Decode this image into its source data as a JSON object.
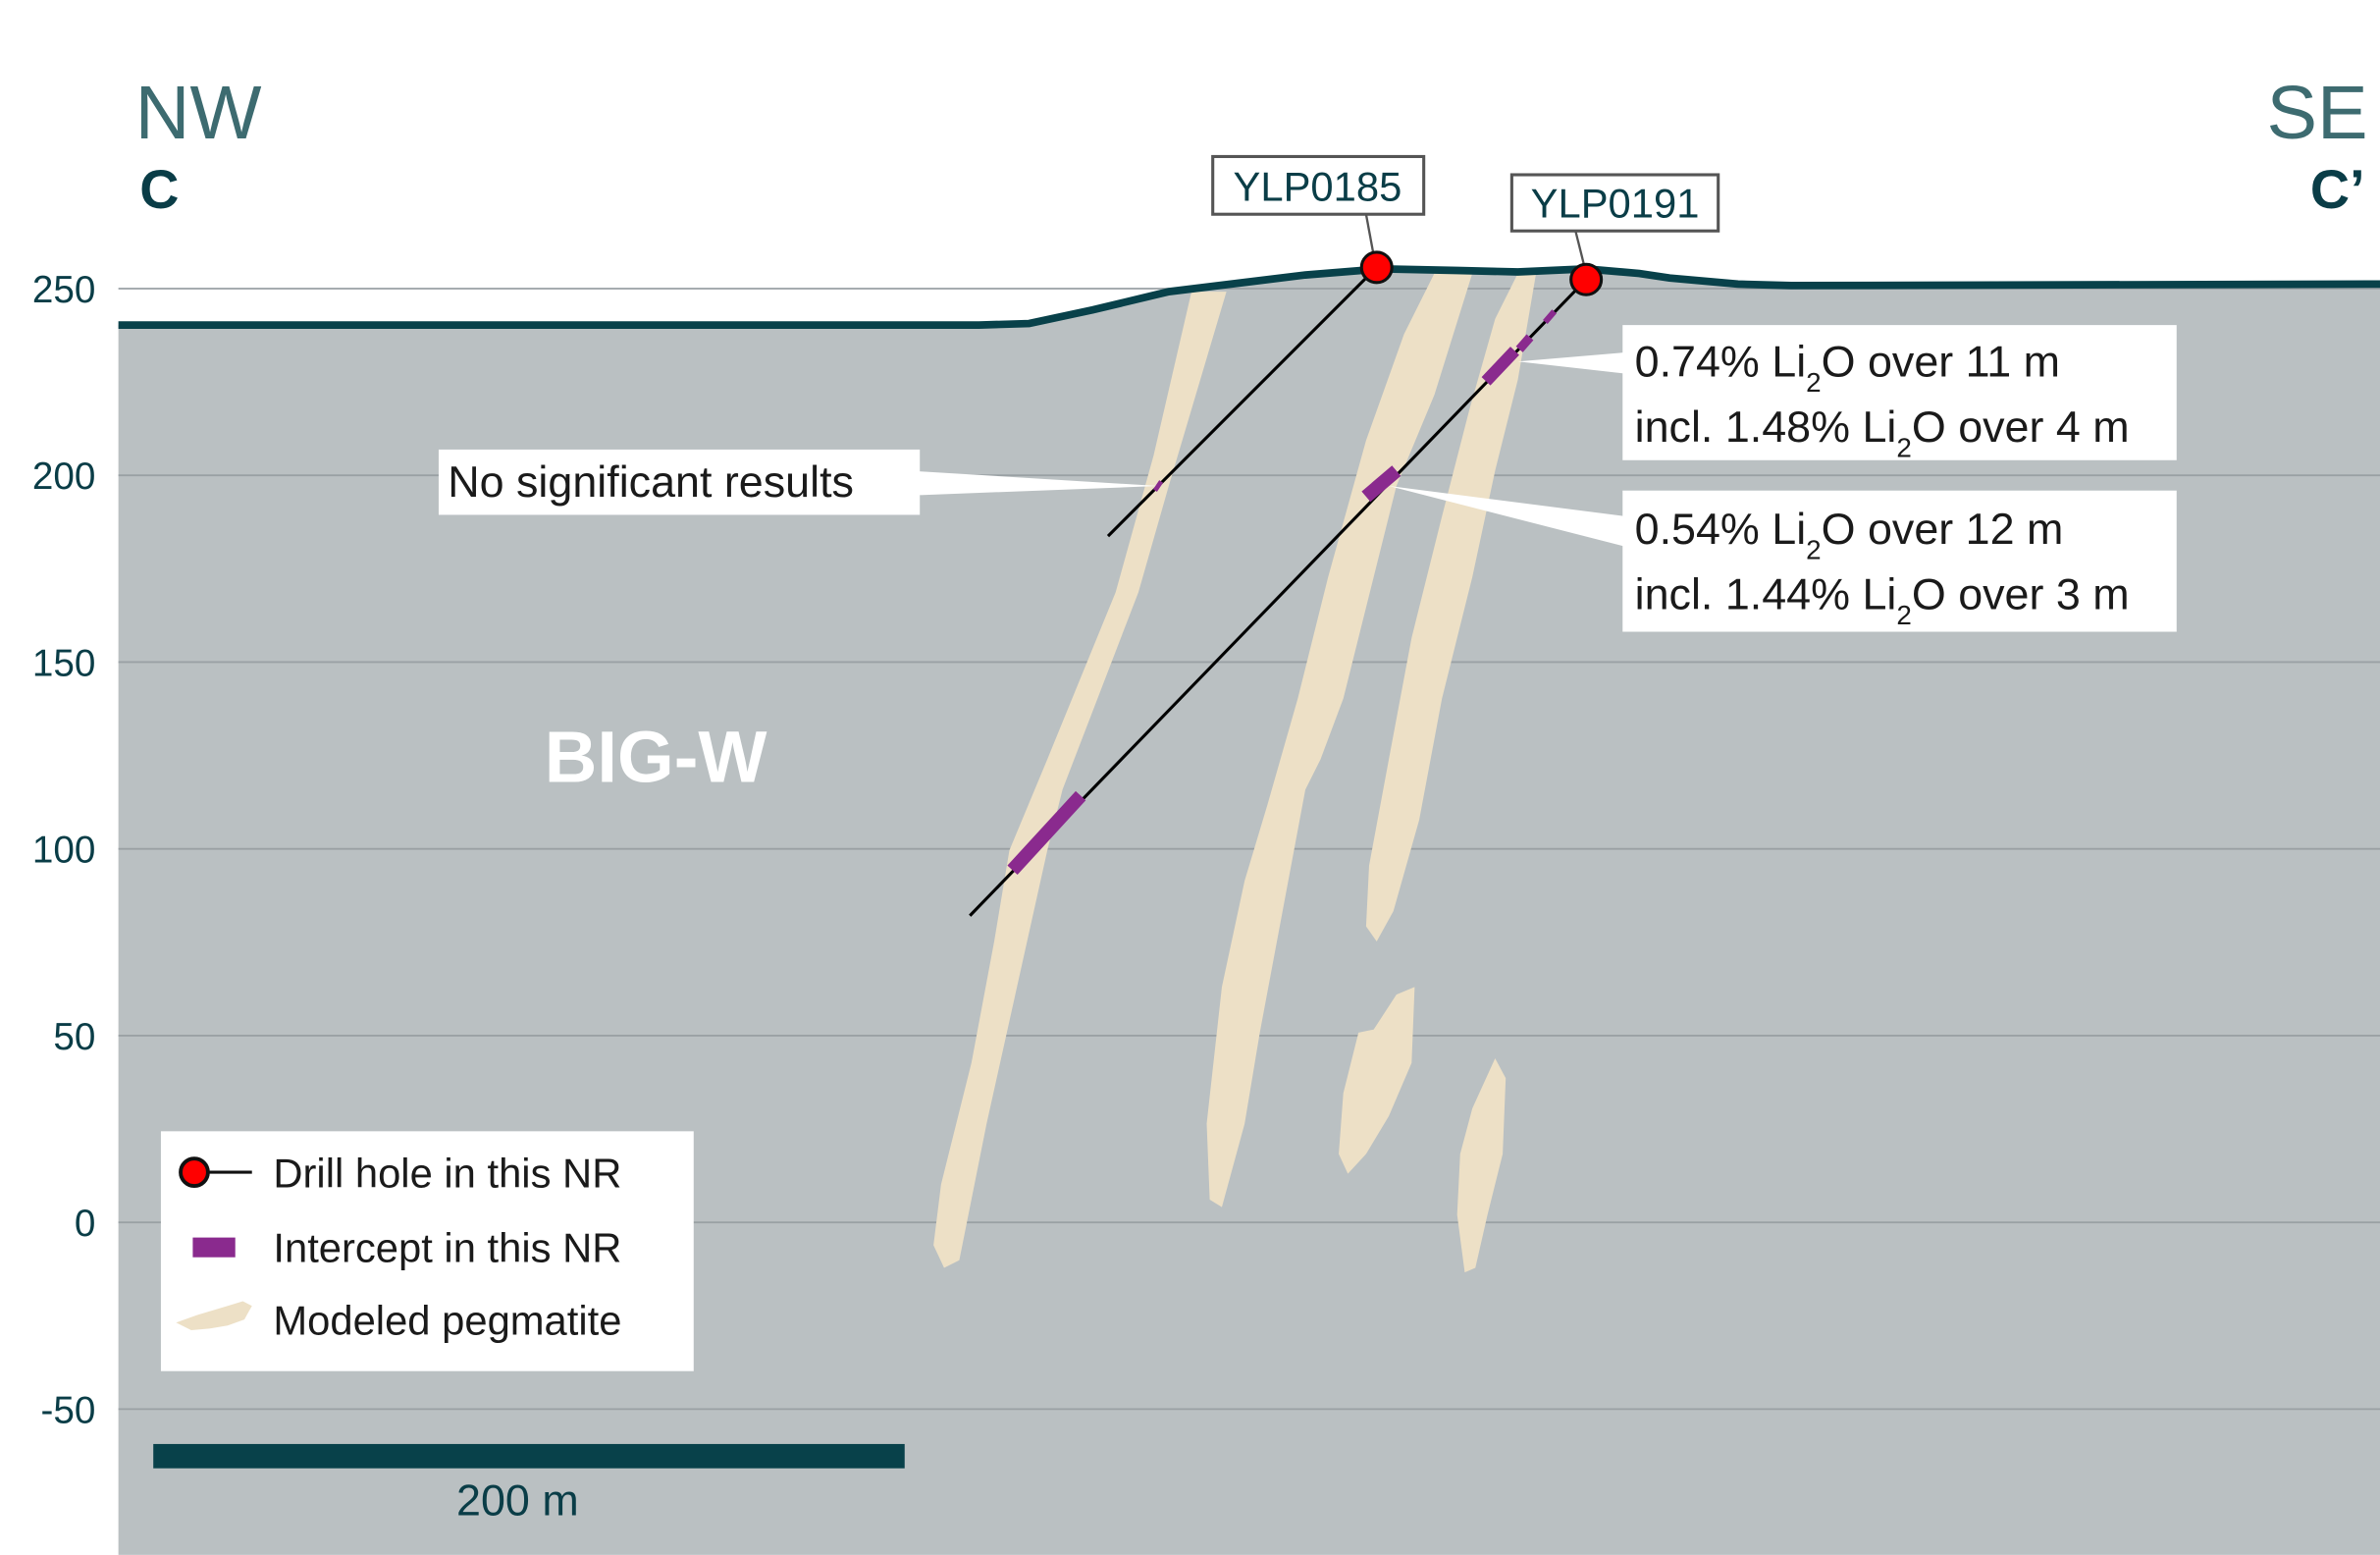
{
  "orientation": {
    "left": "NW",
    "right": "SE",
    "left_section": "C",
    "right_section": "C’"
  },
  "axis": {
    "ticks": [
      250,
      200,
      150,
      100,
      50,
      0,
      -50
    ]
  },
  "area_label": "BIG-W",
  "drill_holes": [
    {
      "id": "YLP0185"
    },
    {
      "id": "YLP0191"
    }
  ],
  "annotations": {
    "no_results": "No significant results",
    "result1": {
      "main_pre": "0.74% Li",
      "main_sub": "2",
      "main_post": "O over 11 m",
      "incl_pre": "incl. 1.48% Li",
      "incl_sub": "2",
      "incl_post": "O over 4 m"
    },
    "result2": {
      "main_pre": "0.54% Li",
      "main_sub": "2",
      "main_post": "O over 12 m",
      "incl_pre": "incl. 1.44% Li",
      "incl_sub": "2",
      "incl_post": "O over 3 m"
    }
  },
  "legend": {
    "drill_hole": "Drill hole in this NR",
    "intercept": "Intercept in this NR",
    "pegmatite": "Modeled pegmatite"
  },
  "scale_bar": {
    "label": "200 m"
  },
  "colors": {
    "ground": "#bac0c2",
    "topography": "#08414a",
    "pegmatite": "#ede0c6",
    "intercept": "#8a2a8e",
    "collar": "#ff0000",
    "axis_text": "#0a3d47",
    "direction_text": "#3d6b70"
  }
}
